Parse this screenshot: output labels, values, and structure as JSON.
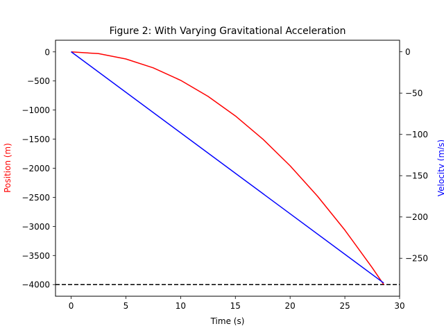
{
  "chart_data": {
    "type": "line",
    "title": "Figure 2: With Varying Gravitational Acceleration",
    "xlabel": "Time (s)",
    "ylabel_left": "Position (m)",
    "ylabel_right": "Velocity (m/s)",
    "xlim": [
      -1.43,
      30
    ],
    "ylim_left": [
      -4200,
      200
    ],
    "ylim_right": [
      -296,
      14
    ],
    "x_ticks": [
      0,
      5,
      10,
      15,
      20,
      25,
      30
    ],
    "x_tick_labels": [
      "0",
      "5",
      "10",
      "15",
      "20",
      "25",
      "30"
    ],
    "y_left_ticks": [
      0,
      -500,
      -1000,
      -1500,
      -2000,
      -2500,
      -3000,
      -3500,
      -4000
    ],
    "y_left_tick_labels": [
      "0",
      "−500",
      "−1000",
      "−1500",
      "−2000",
      "−2500",
      "−3000",
      "−3500",
      "−4000"
    ],
    "y_right_ticks": [
      0,
      -50,
      -100,
      -150,
      -200,
      -250
    ],
    "y_right_tick_labels": [
      "0",
      "−50",
      "−100",
      "−150",
      "−200",
      "−250"
    ],
    "grid": false,
    "colors": {
      "position": "#ff0000",
      "velocity": "#0000ff",
      "ground": "#000000",
      "ylabel_left": "#ff0000",
      "ylabel_right": "#0000ff"
    },
    "series": [
      {
        "axis": "left",
        "color": "#ff0000",
        "x": [
          0,
          2.5,
          5,
          7.5,
          10,
          12.5,
          15,
          17.5,
          20,
          22.5,
          25,
          27.5,
          28.55
        ],
        "values": [
          0,
          -30,
          -122,
          -275,
          -489,
          -764,
          -1101,
          -1498,
          -1958,
          -2480,
          -3063,
          -3710,
          -4000
        ]
      },
      {
        "axis": "right",
        "color": "#0000ff",
        "x": [
          0,
          28.55
        ],
        "values": [
          0,
          -280
        ]
      }
    ],
    "reference_lines": [
      {
        "axis": "left",
        "y": -4000,
        "style": "dashed",
        "color": "#000000"
      }
    ]
  }
}
